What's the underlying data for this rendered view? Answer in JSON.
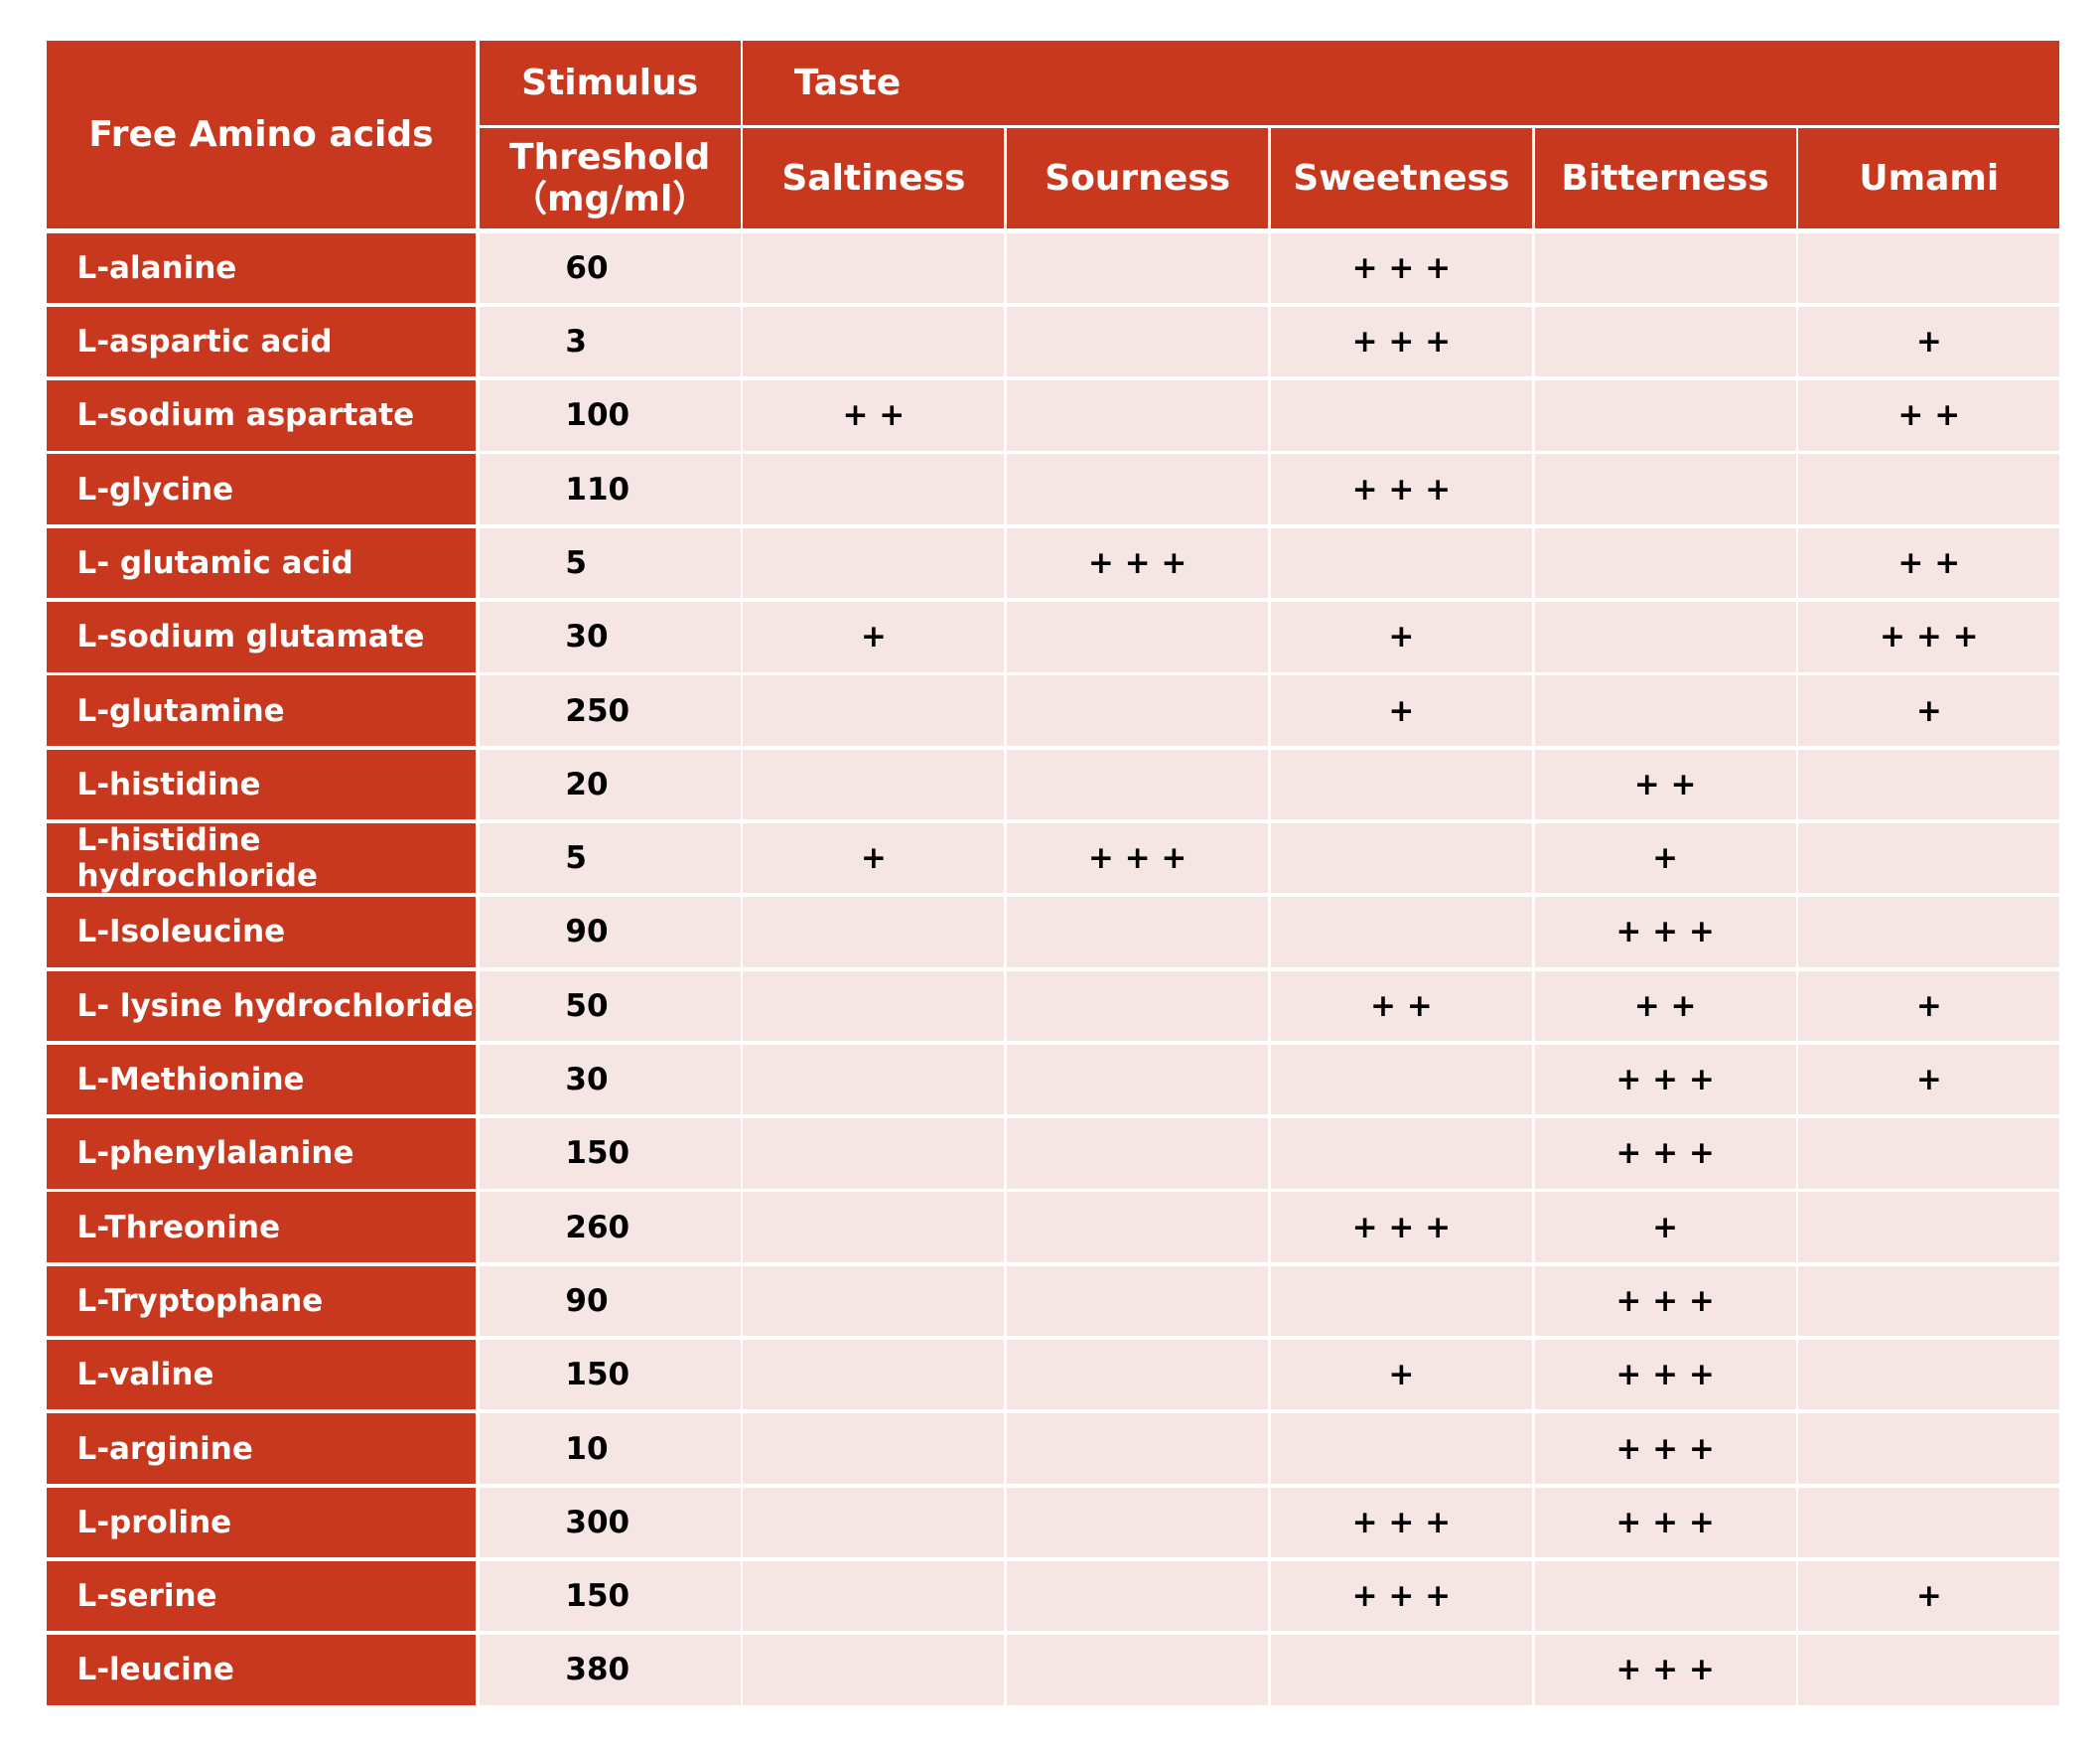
{
  "header": {
    "amino_acids": "Free Amino acids",
    "stimulus": "Stimulus",
    "threshold": "Threshold",
    "unit": "（mg/ml）",
    "taste": "Taste",
    "taste_columns": [
      "Saltiness",
      "Sourness",
      "Sweetness",
      "Bitterness",
      "Umami"
    ]
  },
  "table": {
    "rows": [
      [
        "L-alanine",
        60,
        null,
        null,
        "+ + +",
        null,
        null
      ],
      [
        "L-aspartic acid",
        3,
        null,
        null,
        "+ + +",
        null,
        "+"
      ],
      [
        "L-sodium aspartate",
        100,
        "+ +",
        null,
        null,
        null,
        "+ +"
      ],
      [
        "L-glycine",
        110,
        null,
        null,
        "+ + +",
        null,
        null
      ],
      [
        "L- glutamic acid",
        5,
        null,
        "+ + +",
        null,
        null,
        "+ +"
      ],
      [
        "L-sodium glutamate",
        30,
        "+",
        null,
        "+",
        null,
        "+ + +"
      ],
      [
        "L-glutamine",
        250,
        null,
        null,
        "+",
        null,
        "+"
      ],
      [
        "L-histidine",
        20,
        null,
        null,
        null,
        "+ +",
        null
      ],
      [
        "L-histidine hydrochloride",
        5,
        "+",
        "+ + +",
        null,
        "+",
        null
      ],
      [
        "L-Isoleucine",
        90,
        null,
        null,
        null,
        "+ + +",
        null
      ],
      [
        "L- lysine hydrochloride",
        50,
        null,
        null,
        "+ +",
        "+ +",
        "+"
      ],
      [
        "L-Methionine",
        30,
        null,
        null,
        null,
        "+ + +",
        "+"
      ],
      [
        "L-phenylalanine",
        150,
        null,
        null,
        null,
        "+ + +",
        null
      ],
      [
        "L-Threonine",
        260,
        null,
        null,
        "+ + +",
        "+",
        null
      ],
      [
        "L-Tryptophane",
        90,
        null,
        null,
        null,
        "+ + +",
        null
      ],
      [
        "L-valine",
        150,
        null,
        null,
        "+",
        "+ + +",
        null
      ],
      [
        "L-arginine",
        10,
        null,
        null,
        null,
        "+ + +",
        null
      ],
      [
        "L-proline",
        300,
        null,
        null,
        "+ + +",
        "+ + +",
        null
      ],
      [
        "L-serine",
        150,
        null,
        null,
        "+ + +",
        null,
        "+"
      ],
      [
        "L-leucine",
        380,
        null,
        null,
        null,
        "+ + +",
        null
      ]
    ]
  }
}
